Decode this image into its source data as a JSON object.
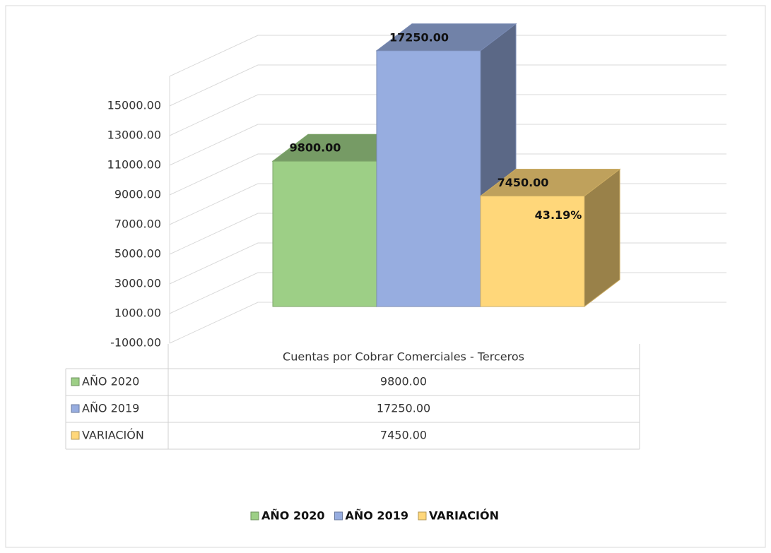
{
  "chart_data": {
    "type": "bar3d",
    "categories": [
      "Cuentas por Cobrar Comerciales - Terceros"
    ],
    "series": [
      {
        "name": "AÑO 2020",
        "color": "#9dcf86",
        "values": [
          9800
        ],
        "value_labels": [
          "9800.00"
        ]
      },
      {
        "name": "AÑO 2019",
        "color": "#97ade0",
        "values": [
          17250
        ],
        "value_labels": [
          "17250.00"
        ]
      },
      {
        "name": "VARIACIÓN",
        "color": "#ffd77a",
        "values": [
          7450
        ],
        "value_labels": [
          "7450.00"
        ]
      }
    ],
    "annotation": "43.19%",
    "ylim": [
      -1000,
      17000
    ],
    "yticks": [
      {
        "value": -1000,
        "label": "-1000.00"
      },
      {
        "value": 1000,
        "label": "1000.00"
      },
      {
        "value": 3000,
        "label": "3000.00"
      },
      {
        "value": 5000,
        "label": "5000.00"
      },
      {
        "value": 7000,
        "label": "7000.00"
      },
      {
        "value": 9000,
        "label": "9000.00"
      },
      {
        "value": 11000,
        "label": "11000.00"
      },
      {
        "value": 13000,
        "label": "13000.00"
      },
      {
        "value": 15000,
        "label": "15000.00"
      }
    ],
    "grid": true,
    "legend": "bottom"
  }
}
